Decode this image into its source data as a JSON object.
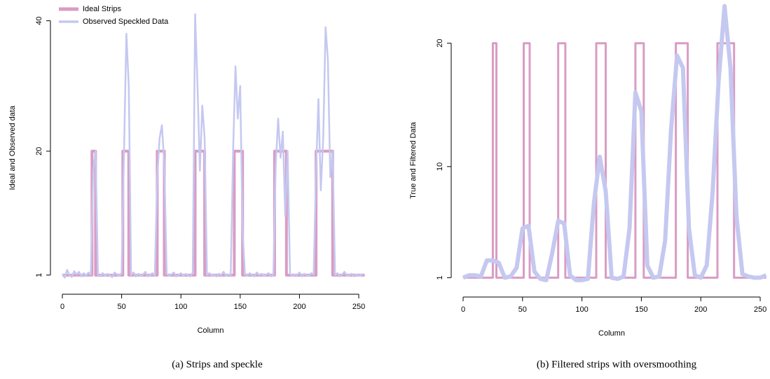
{
  "chart_data": [
    {
      "type": "line",
      "caption": "(a)  Strips and speckle",
      "xlabel": "Column",
      "ylabel": "Ideal and Observed data",
      "xlim": [
        0,
        255
      ],
      "ylim": [
        0,
        42
      ],
      "xticks": [
        0,
        50,
        100,
        150,
        200,
        250
      ],
      "yticks": [
        1,
        20,
        40
      ],
      "legend": "top-left",
      "series": [
        {
          "name": "Ideal Strips",
          "color": "#d99cc4",
          "width": 4,
          "x": [
            0,
            25,
            25,
            28,
            28,
            51,
            51,
            56,
            56,
            80,
            80,
            86,
            86,
            112,
            112,
            120,
            120,
            145,
            145,
            152,
            152,
            179,
            179,
            189,
            189,
            214,
            214,
            228,
            228,
            255
          ],
          "values": [
            1,
            1,
            20,
            20,
            1,
            1,
            20,
            20,
            1,
            1,
            20,
            20,
            1,
            1,
            20,
            20,
            1,
            1,
            20,
            20,
            1,
            1,
            20,
            20,
            1,
            1,
            20,
            20,
            1,
            1
          ]
        },
        {
          "name": "Observed Speckled Data",
          "color": "#c5c8f0",
          "width": 2.5,
          "x": [
            0,
            2,
            4,
            6,
            8,
            10,
            12,
            14,
            16,
            18,
            20,
            22,
            24,
            26,
            28,
            30,
            32,
            34,
            36,
            38,
            40,
            42,
            44,
            46,
            48,
            50,
            52,
            54,
            56,
            58,
            60,
            62,
            64,
            66,
            68,
            70,
            72,
            74,
            76,
            78,
            80,
            82,
            84,
            86,
            88,
            90,
            92,
            94,
            96,
            98,
            100,
            102,
            104,
            106,
            108,
            110,
            112,
            114,
            116,
            118,
            120,
            122,
            124,
            126,
            128,
            130,
            132,
            134,
            136,
            138,
            140,
            142,
            144,
            146,
            148,
            150,
            152,
            154,
            156,
            158,
            160,
            162,
            164,
            166,
            168,
            170,
            172,
            174,
            176,
            178,
            180,
            182,
            184,
            186,
            188,
            190,
            192,
            194,
            196,
            198,
            200,
            202,
            204,
            206,
            208,
            210,
            212,
            214,
            216,
            218,
            220,
            222,
            224,
            226,
            228,
            230,
            232,
            234,
            236,
            238,
            240,
            242,
            244,
            246,
            248,
            250,
            252,
            254
          ],
          "values": [
            1.2,
            0.6,
            1.8,
            1.0,
            0.7,
            1.6,
            1.1,
            1.5,
            0.8,
            1.3,
            0.9,
            1.4,
            1.0,
            17,
            20,
            1.1,
            0.8,
            1.3,
            0.9,
            1.2,
            1.0,
            0.7,
            1.4,
            1.1,
            0.9,
            1.3,
            20,
            38,
            30,
            1.0,
            1.4,
            0.8,
            1.2,
            0.9,
            1.1,
            1.5,
            0.8,
            1.0,
            1.3,
            0.9,
            16,
            22,
            24,
            18,
            1.2,
            0.9,
            1.1,
            1.4,
            0.8,
            1.0,
            1.3,
            0.9,
            1.2,
            1.0,
            0.8,
            1.4,
            41,
            30,
            17,
            27,
            22,
            1.0,
            1.3,
            0.9,
            1.1,
            0.8,
            1.2,
            1.0,
            1.5,
            0.9,
            1.1,
            1.0,
            20,
            33,
            25,
            30,
            8,
            1.1,
            0.9,
            1.3,
            1.0,
            0.8,
            1.4,
            1.0,
            1.2,
            0.9,
            1.1,
            1.3,
            0.8,
            1.0,
            18,
            25,
            19,
            23,
            10,
            20,
            1.2,
            0.9,
            1.1,
            1.0,
            1.4,
            0.8,
            1.2,
            1.0,
            0.9,
            1.3,
            1.1,
            17,
            28,
            14,
            22,
            39,
            34,
            16,
            20,
            1.0,
            1.3,
            0.8,
            1.1,
            1.5,
            0.9,
            1.0,
            1.2,
            0.8,
            1.1,
            0.9,
            1.0,
            1.2
          ]
        }
      ]
    },
    {
      "type": "line",
      "caption": "(b)  Filtered strips with oversmoothing",
      "xlabel": "Column",
      "ylabel": "True and Filtered Data",
      "xlim": [
        0,
        255
      ],
      "ylim": [
        0,
        23.5
      ],
      "xticks": [
        0,
        50,
        100,
        150,
        200,
        250
      ],
      "yticks": [
        1,
        10,
        20
      ],
      "series": [
        {
          "color": "#d99cc4",
          "width": 3,
          "x": [
            0,
            25,
            25,
            28,
            28,
            51,
            51,
            56,
            56,
            80,
            80,
            86,
            86,
            112,
            112,
            120,
            120,
            145,
            145,
            152,
            152,
            179,
            179,
            189,
            189,
            214,
            214,
            228,
            228,
            255
          ],
          "values": [
            1,
            1,
            20,
            20,
            1,
            1,
            20,
            20,
            1,
            1,
            20,
            20,
            1,
            1,
            20,
            20,
            1,
            1,
            20,
            20,
            1,
            1,
            20,
            20,
            1,
            1,
            20,
            20,
            1,
            1
          ]
        },
        {
          "color": "#c5c8f0",
          "width": 6,
          "x": [
            0,
            5,
            10,
            15,
            20,
            25,
            30,
            35,
            40,
            45,
            50,
            55,
            60,
            65,
            70,
            75,
            80,
            85,
            90,
            95,
            100,
            105,
            110,
            115,
            120,
            125,
            130,
            135,
            140,
            145,
            150,
            155,
            160,
            165,
            170,
            175,
            180,
            185,
            190,
            195,
            200,
            205,
            210,
            215,
            220,
            225,
            230,
            235,
            240,
            245,
            250,
            255
          ],
          "values": [
            1.0,
            1.2,
            1.2,
            1.1,
            2.4,
            2.4,
            2.2,
            1.0,
            1.1,
            1.8,
            5.0,
            5.2,
            1.5,
            0.9,
            0.8,
            3.0,
            5.6,
            5.4,
            1.2,
            0.8,
            0.8,
            0.9,
            7.0,
            10.8,
            8.0,
            1.0,
            0.9,
            1.1,
            5.0,
            16.0,
            14.5,
            2.0,
            1.0,
            1.1,
            4.0,
            13.0,
            19.0,
            18.0,
            5.0,
            1.2,
            1.0,
            2.0,
            8.0,
            17.0,
            23.0,
            18.0,
            6.0,
            1.3,
            1.1,
            1.0,
            1.0,
            1.2
          ]
        }
      ]
    }
  ]
}
